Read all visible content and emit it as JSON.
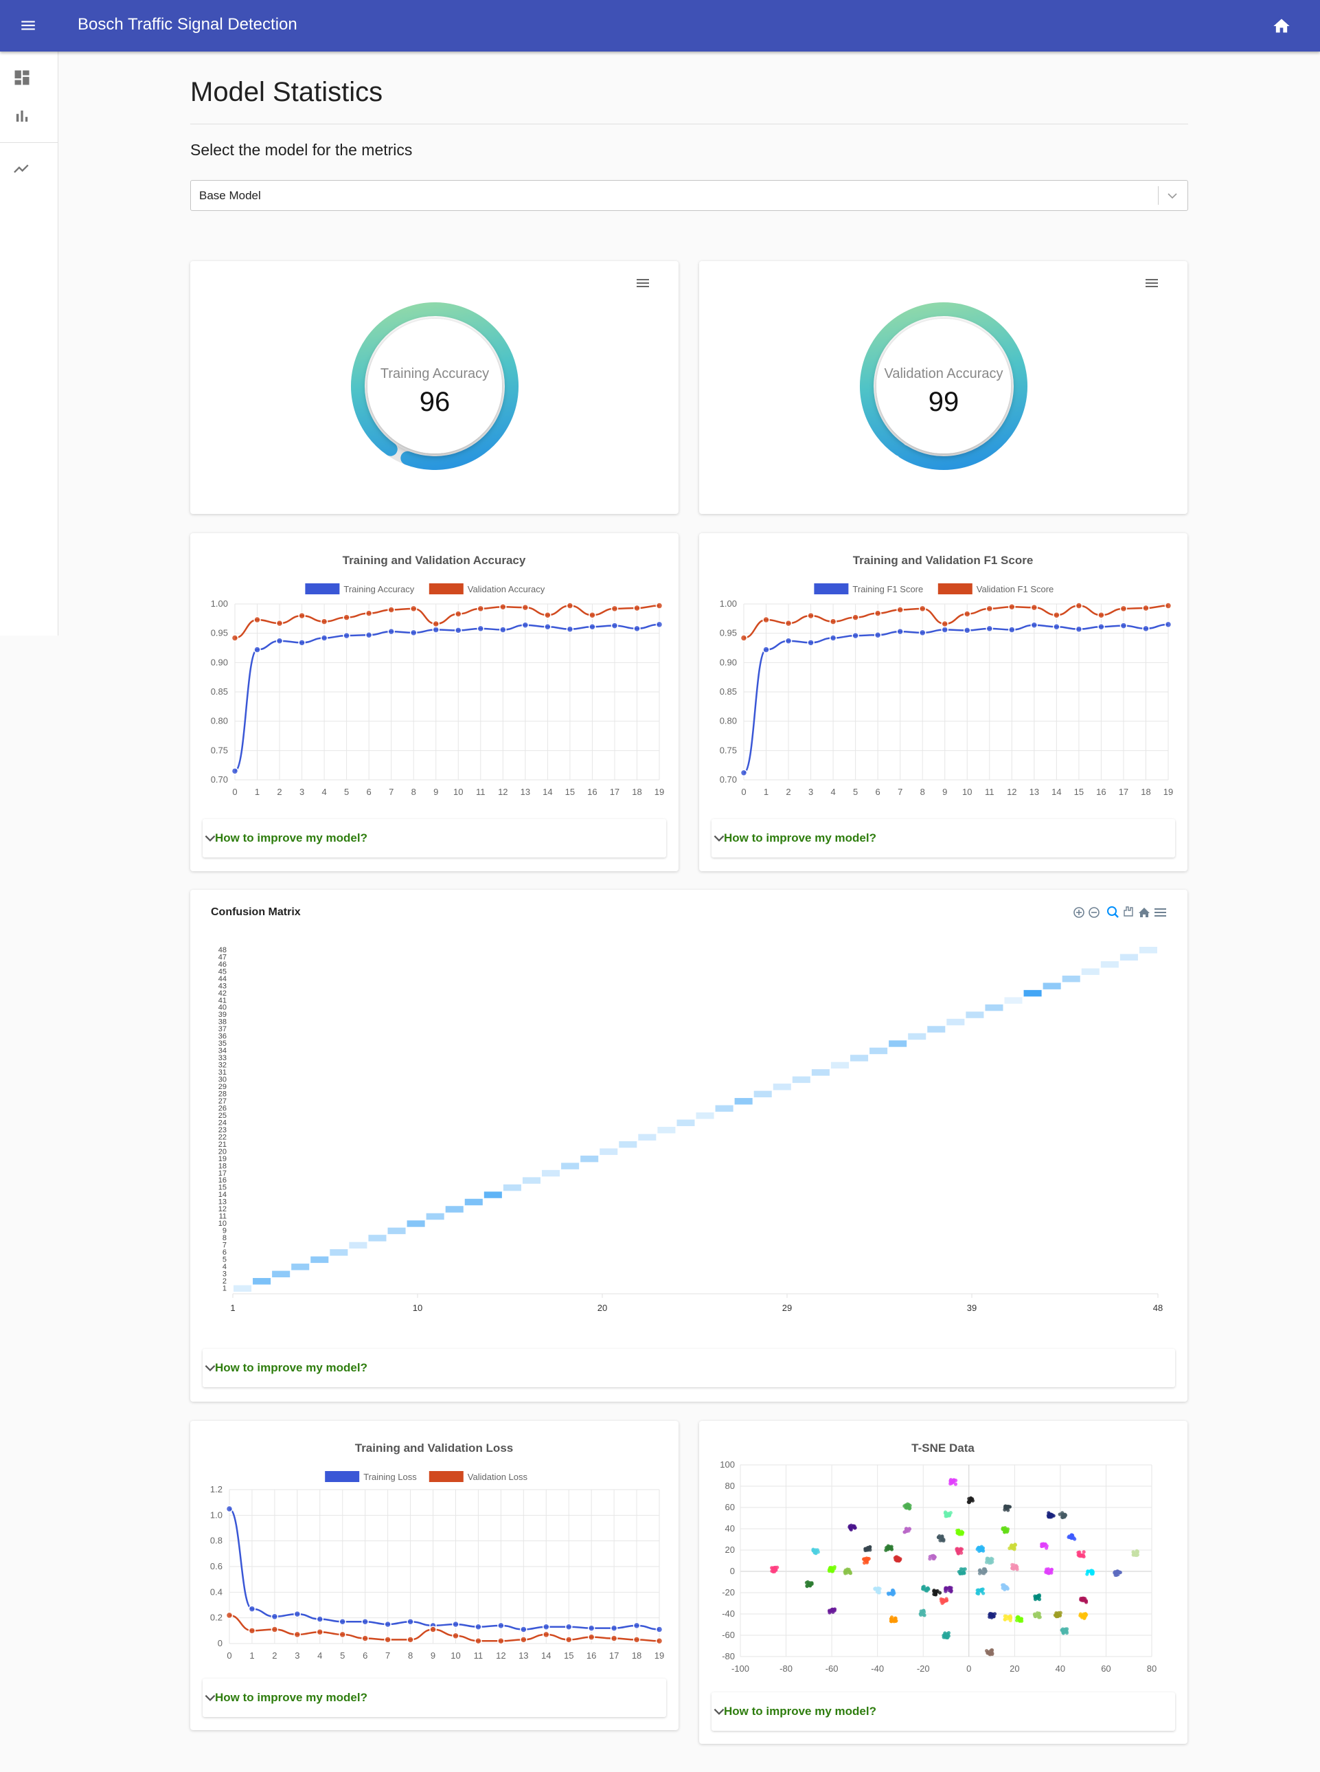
{
  "app": {
    "title": "Bosch Traffic Signal Detection"
  },
  "page": {
    "title": "Model Statistics",
    "subtitle": "Select the model for the metrics"
  },
  "model_select": {
    "value": "Base Model"
  },
  "improve_label": "How to improve my model?",
  "colors": {
    "primary": "#3f51b5",
    "training": "#3a57d6",
    "validation": "#d14a1f",
    "improve": "#2e7d0e",
    "heat": "#2196f3"
  },
  "icons": [
    "menu-icon",
    "home-icon",
    "dashboard-icon",
    "bar-chart-icon",
    "trending-icon",
    "hamburger-menu-icon",
    "chevron-down-icon",
    "zoom-in-icon",
    "zoom-out-icon",
    "zoom-icon",
    "pan-icon",
    "reset-home-icon"
  ],
  "gauges": [
    {
      "label": "Training Accuracy",
      "value": "96",
      "percent": 96
    },
    {
      "label": "Validation Accuracy",
      "value": "99",
      "percent": 99
    }
  ],
  "chart_data": [
    {
      "type": "line",
      "title": "Training and Validation Accuracy",
      "x": [
        0,
        1,
        2,
        3,
        4,
        5,
        6,
        7,
        8,
        9,
        10,
        11,
        12,
        13,
        14,
        15,
        16,
        17,
        18,
        19
      ],
      "yticks": [
        "1.00",
        "0.95",
        "0.90",
        "0.85",
        "0.80",
        "0.75",
        "0.70"
      ],
      "ylim": [
        0.7,
        1.0
      ],
      "series": [
        {
          "name": "Training Accuracy",
          "color": "#3a57d6",
          "values": [
            0.715,
            0.922,
            0.937,
            0.934,
            0.942,
            0.946,
            0.947,
            0.953,
            0.951,
            0.956,
            0.955,
            0.958,
            0.956,
            0.964,
            0.961,
            0.957,
            0.961,
            0.963,
            0.958,
            0.965
          ]
        },
        {
          "name": "Validation Accuracy",
          "color": "#d14a1f",
          "values": [
            0.942,
            0.973,
            0.967,
            0.98,
            0.97,
            0.977,
            0.984,
            0.99,
            0.992,
            0.966,
            0.983,
            0.992,
            0.995,
            0.994,
            0.981,
            0.997,
            0.981,
            0.992,
            0.993,
            0.997
          ]
        }
      ]
    },
    {
      "type": "line",
      "title": "Training and Validation F1 Score",
      "x": [
        0,
        1,
        2,
        3,
        4,
        5,
        6,
        7,
        8,
        9,
        10,
        11,
        12,
        13,
        14,
        15,
        16,
        17,
        18,
        19
      ],
      "yticks": [
        "1.00",
        "0.95",
        "0.90",
        "0.85",
        "0.80",
        "0.75",
        "0.70"
      ],
      "ylim": [
        0.7,
        1.0
      ],
      "series": [
        {
          "name": "Training F1 Score",
          "color": "#3a57d6",
          "values": [
            0.712,
            0.922,
            0.937,
            0.934,
            0.942,
            0.946,
            0.947,
            0.953,
            0.951,
            0.956,
            0.955,
            0.958,
            0.956,
            0.964,
            0.961,
            0.957,
            0.961,
            0.963,
            0.958,
            0.965
          ]
        },
        {
          "name": "Validation F1 Score",
          "color": "#d14a1f",
          "values": [
            0.942,
            0.973,
            0.967,
            0.98,
            0.97,
            0.977,
            0.984,
            0.99,
            0.992,
            0.966,
            0.983,
            0.992,
            0.995,
            0.994,
            0.981,
            0.997,
            0.981,
            0.992,
            0.993,
            0.997
          ]
        }
      ]
    },
    {
      "type": "heatmap",
      "title": "Confusion Matrix",
      "xticks": [
        "1",
        "10",
        "20",
        "29",
        "39",
        "48"
      ],
      "yticks": [
        "48",
        "47",
        "46",
        "45",
        "44",
        "43",
        "42",
        "41",
        "40",
        "39",
        "38",
        "37",
        "36",
        "35",
        "34",
        "33",
        "32",
        "31",
        "30",
        "29",
        "28",
        "27",
        "26",
        "25",
        "24",
        "23",
        "22",
        "21",
        "20",
        "19",
        "18",
        "17",
        "16",
        "15",
        "14",
        "13",
        "12",
        "11",
        "10",
        "9",
        "8",
        "7",
        "6",
        "5",
        "4",
        "3",
        "2",
        "1"
      ],
      "diagonal_intensity": [
        0.1,
        0.6,
        0.5,
        0.45,
        0.5,
        0.3,
        0.15,
        0.3,
        0.35,
        0.55,
        0.4,
        0.5,
        0.6,
        0.75,
        0.25,
        0.2,
        0.15,
        0.3,
        0.35,
        0.15,
        0.2,
        0.15,
        0.1,
        0.2,
        0.1,
        0.3,
        0.5,
        0.25,
        0.15,
        0.2,
        0.25,
        0.1,
        0.25,
        0.3,
        0.5,
        0.2,
        0.3,
        0.15,
        0.25,
        0.35,
        0.05,
        0.9,
        0.5,
        0.35,
        0.1,
        0.1,
        0.15,
        0.1
      ]
    },
    {
      "type": "line",
      "title": "Training and Validation Loss",
      "x": [
        0,
        1,
        2,
        3,
        4,
        5,
        6,
        7,
        8,
        9,
        10,
        11,
        12,
        13,
        14,
        15,
        16,
        17,
        18,
        19
      ],
      "yticks": [
        "1.2",
        "1.0",
        "0.8",
        "0.6",
        "0.4",
        "0.2",
        "0"
      ],
      "ylim": [
        0,
        1.2
      ],
      "series": [
        {
          "name": "Training Loss",
          "color": "#3a57d6",
          "values": [
            1.05,
            0.27,
            0.21,
            0.23,
            0.19,
            0.17,
            0.17,
            0.15,
            0.17,
            0.14,
            0.15,
            0.13,
            0.14,
            0.11,
            0.13,
            0.13,
            0.12,
            0.12,
            0.14,
            0.11
          ]
        },
        {
          "name": "Validation Loss",
          "color": "#d14a1f",
          "values": [
            0.22,
            0.1,
            0.11,
            0.07,
            0.09,
            0.07,
            0.04,
            0.03,
            0.03,
            0.11,
            0.06,
            0.02,
            0.02,
            0.03,
            0.07,
            0.03,
            0.05,
            0.04,
            0.03,
            0.02
          ]
        }
      ]
    },
    {
      "type": "scatter",
      "title": "T-SNE Data",
      "xticks": [
        "-100",
        "-80",
        "-60",
        "-40",
        "-20",
        "0",
        "20",
        "40",
        "60",
        "80"
      ],
      "yticks": [
        "100",
        "80",
        "60",
        "40",
        "20",
        "0",
        "-20",
        "-40",
        "-60",
        "-80"
      ],
      "xlim": [
        -100,
        80
      ],
      "ylim": [
        -80,
        100
      ],
      "clusters": [
        {
          "x": -7,
          "y": 84,
          "color": "#e040fb"
        },
        {
          "x": 1,
          "y": 67,
          "color": "#212121"
        },
        {
          "x": -27,
          "y": 61,
          "color": "#4caf50"
        },
        {
          "x": -9,
          "y": 54,
          "color": "#69f0ae"
        },
        {
          "x": 17,
          "y": 59,
          "color": "#37474f"
        },
        {
          "x": 36,
          "y": 53,
          "color": "#1a237e"
        },
        {
          "x": 41,
          "y": 53,
          "color": "#455a64"
        },
        {
          "x": -51,
          "y": 41,
          "color": "#4a148c"
        },
        {
          "x": -27,
          "y": 38,
          "color": "#ba68c8"
        },
        {
          "x": -4,
          "y": 37,
          "color": "#76ff03"
        },
        {
          "x": 16,
          "y": 39,
          "color": "#64dd17"
        },
        {
          "x": 45,
          "y": 32,
          "color": "#3d5afe"
        },
        {
          "x": -12,
          "y": 31,
          "color": "#455a64"
        },
        {
          "x": -67,
          "y": 19,
          "color": "#4dd0e1"
        },
        {
          "x": -44,
          "y": 21,
          "color": "#37474f"
        },
        {
          "x": -35,
          "y": 22,
          "color": "#2e7d32"
        },
        {
          "x": -4,
          "y": 19,
          "color": "#ec407a"
        },
        {
          "x": 5,
          "y": 21,
          "color": "#29b6f6"
        },
        {
          "x": 19,
          "y": 23,
          "color": "#cddc39"
        },
        {
          "x": 33,
          "y": 24,
          "color": "#e040fb"
        },
        {
          "x": 49,
          "y": 16,
          "color": "#ff4081"
        },
        {
          "x": 73,
          "y": 17,
          "color": "#c5e1a5"
        },
        {
          "x": -45,
          "y": 10,
          "color": "#ff5722"
        },
        {
          "x": -31,
          "y": 12,
          "color": "#d32f2f"
        },
        {
          "x": -16,
          "y": 13,
          "color": "#ba68c8"
        },
        {
          "x": 9,
          "y": 10,
          "color": "#80cbc4"
        },
        {
          "x": -85,
          "y": 2,
          "color": "#ff4081"
        },
        {
          "x": -60,
          "y": 2,
          "color": "#76ff03"
        },
        {
          "x": -53,
          "y": 0,
          "color": "#8bc34a"
        },
        {
          "x": -3,
          "y": 0,
          "color": "#26a69a"
        },
        {
          "x": 6,
          "y": 0,
          "color": "#78909c"
        },
        {
          "x": 20,
          "y": 4,
          "color": "#f48fb1"
        },
        {
          "x": 35,
          "y": 0,
          "color": "#e040fb"
        },
        {
          "x": 53,
          "y": -1,
          "color": "#00e5ff"
        },
        {
          "x": 65,
          "y": -2,
          "color": "#5c6bc0"
        },
        {
          "x": -70,
          "y": -12,
          "color": "#2e7d32"
        },
        {
          "x": -40,
          "y": -18,
          "color": "#b3e5fc"
        },
        {
          "x": -34,
          "y": -20,
          "color": "#42a5f5"
        },
        {
          "x": -19,
          "y": -16,
          "color": "#26a69a"
        },
        {
          "x": -14,
          "y": -20,
          "color": "#1b1b1b"
        },
        {
          "x": -9,
          "y": -17,
          "color": "#6a1b9a"
        },
        {
          "x": 5,
          "y": -19,
          "color": "#26c6da"
        },
        {
          "x": 16,
          "y": -15,
          "color": "#90caf9"
        },
        {
          "x": -11,
          "y": -28,
          "color": "#ff5252"
        },
        {
          "x": 30,
          "y": -24,
          "color": "#00897b"
        },
        {
          "x": 50,
          "y": -27,
          "color": "#ad1457"
        },
        {
          "x": -60,
          "y": -37,
          "color": "#6a1b9a"
        },
        {
          "x": -20,
          "y": -39,
          "color": "#4db6ac"
        },
        {
          "x": 10,
          "y": -42,
          "color": "#1a237e"
        },
        {
          "x": 17,
          "y": -44,
          "color": "#ffeb3b"
        },
        {
          "x": 22,
          "y": -45,
          "color": "#76ff03"
        },
        {
          "x": 30,
          "y": -41,
          "color": "#9ccc65"
        },
        {
          "x": 39,
          "y": -41,
          "color": "#9e9d24"
        },
        {
          "x": 50,
          "y": -42,
          "color": "#ffc107"
        },
        {
          "x": -33,
          "y": -45,
          "color": "#ff9800"
        },
        {
          "x": -10,
          "y": -60,
          "color": "#26a69a"
        },
        {
          "x": 42,
          "y": -56,
          "color": "#4db6ac"
        },
        {
          "x": 9,
          "y": -76,
          "color": "#8d6e63"
        }
      ]
    }
  ]
}
